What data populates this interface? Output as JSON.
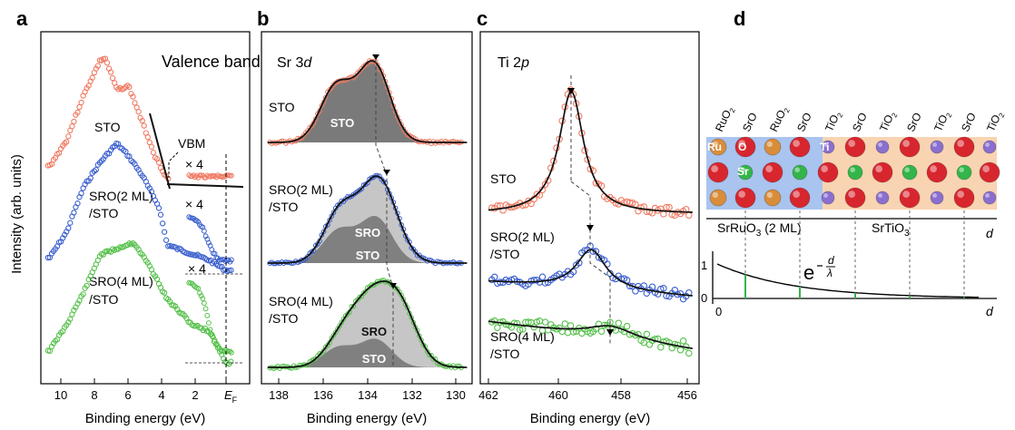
{
  "panel_letters": [
    "a",
    "b",
    "c",
    "d"
  ],
  "ylabel": "Intensity (arb. units)",
  "colors": {
    "STO": "#f07a62",
    "SRO2": "#3a5fcd",
    "SRO4": "#55c04a",
    "fit": "#111111",
    "sto_fill": "#6e6e6e",
    "sro_fill": "#c6c6c6",
    "blue_bg": "#a9c4ef",
    "orange_bg": "#f8d4b3",
    "o_ball": "#d8262e",
    "ru_ball": "#d88d3a",
    "sr_ball": "#33b54a",
    "ti_ball": "#8a6fd0"
  },
  "panel_a": {
    "title": "Valence band",
    "xlabel": "Binding energy (eV)",
    "xticks": [
      "10",
      "8",
      "6",
      "4",
      "2",
      "E"
    ],
    "ef_sub": "F",
    "vbm_label": "VBM",
    "x4": "× 4",
    "traces": [
      {
        "label": "STO",
        "color": "#f07a62"
      },
      {
        "label": "SRO(2 ML)",
        "label2": "/STO",
        "color": "#3a5fcd"
      },
      {
        "label": "SRO(4 ML)",
        "label2": "/STO",
        "color": "#55c04a"
      }
    ]
  },
  "panel_b": {
    "title": "Sr 3",
    "title_it": "d",
    "xlabel": "Binding energy (eV)",
    "xticks": [
      "138",
      "136",
      "134",
      "132",
      "130"
    ],
    "fill_sto": "STO",
    "fill_sro": "SRO",
    "traces": [
      {
        "label": "STO"
      },
      {
        "label": "SRO(2 ML)",
        "label2": "/STO"
      },
      {
        "label": "SRO(4 ML)",
        "label2": "/STO"
      }
    ]
  },
  "panel_c": {
    "title": "Ti 2",
    "title_it": "p",
    "xlabel": "Binding energy (eV)",
    "xticks": [
      "462",
      "460",
      "458",
      "456"
    ],
    "traces": [
      {
        "label": "STO"
      },
      {
        "label": "SRO(2 ML)",
        "label2": "/STO"
      },
      {
        "label": "SRO(4 ML)",
        "label2": "/STO"
      }
    ]
  },
  "panel_d": {
    "layers": [
      "RuO",
      "SrO",
      "RuO",
      "SrO",
      "TiO",
      "SrO",
      "TiO",
      "SrO",
      "TiO",
      "SrO",
      "TiO"
    ],
    "atoms": [
      "Ru",
      "O",
      "Sr",
      "Ti"
    ],
    "sro_label": "SrRuO",
    "sro_sub": "3",
    "sro_suffix": " (2 ML)",
    "sto_label": "SrTiO",
    "sto_sub": "3",
    "d_label": "d",
    "exp_base": "e",
    "exp_d": "d",
    "exp_lambda": "λ",
    "yticks": [
      "1",
      "0"
    ],
    "x0": "0"
  },
  "chart_data": [
    {
      "type": "line",
      "title": "Valence band",
      "xlabel": "Binding energy (eV)",
      "ylabel": "Intensity (arb. units)",
      "xlim": [
        11,
        -0.5
      ],
      "series": [
        {
          "name": "STO",
          "x": [
            10.5,
            9.5,
            8.5,
            7.5,
            7.2,
            6.5,
            5.8,
            5,
            4.2,
            3.5
          ],
          "y": [
            0.15,
            0.35,
            0.7,
            0.98,
            1.0,
            0.75,
            0.78,
            0.5,
            0.22,
            0.05
          ]
        },
        {
          "name": "SRO(2 ML)/STO",
          "x": [
            10.5,
            9.5,
            8.5,
            7.5,
            6.5,
            5.8,
            5,
            4,
            3.5,
            1,
            0
          ],
          "y": [
            0.1,
            0.3,
            0.65,
            0.85,
            1.0,
            0.9,
            0.75,
            0.5,
            0.2,
            0.08,
            0.0
          ]
        },
        {
          "name": "SRO(4 ML)/STO",
          "x": [
            10.5,
            9.5,
            8.5,
            7.5,
            6.5,
            5.5,
            4.5,
            3.5,
            2,
            1,
            0
          ],
          "y": [
            0.1,
            0.3,
            0.55,
            0.85,
            0.9,
            0.95,
            0.75,
            0.5,
            0.3,
            0.25,
            0.0
          ]
        }
      ]
    },
    {
      "type": "line",
      "title": "Sr 3d",
      "xlabel": "Binding energy (eV)",
      "xlim": [
        138.5,
        129.5
      ],
      "series": [
        {
          "name": "STO",
          "peak_eV": 133.7,
          "shoulder_eV": 135.4
        },
        {
          "name": "SRO(2 ML)/STO",
          "peak_eV": 133.2,
          "shoulder_eV": 134.9
        },
        {
          "name": "SRO(4 ML)/STO",
          "peak_eV": 132.6,
          "shoulder_eV": 134.3
        }
      ]
    },
    {
      "type": "line",
      "title": "Ti 2p",
      "xlabel": "Binding energy (eV)",
      "xlim": [
        462,
        455.8
      ],
      "series": [
        {
          "name": "STO",
          "peak_eV": 459.5
        },
        {
          "name": "SRO(2 ML)/STO",
          "peak_eV": 458.9
        },
        {
          "name": "SRO(4 ML)/STO",
          "peak_eV": 458.3
        }
      ]
    }
  ]
}
